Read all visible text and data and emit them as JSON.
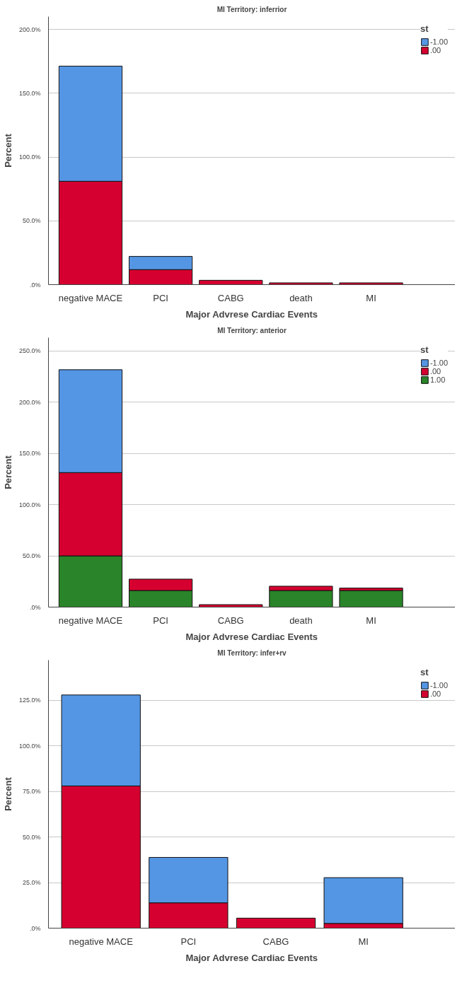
{
  "chart_data": [
    {
      "type": "bar",
      "stacked": true,
      "title": "MI Territory: inferrior",
      "xlabel": "Major Advrese Cardiac Events",
      "ylabel": "Percent",
      "legend_title": "st",
      "legend": "top right",
      "grid": "y",
      "categories": [
        "negative MACE",
        "PCI",
        "CABG",
        "death",
        "MI"
      ],
      "series": [
        {
          "name": ".00",
          "color": "#d5002f",
          "values": [
            81.0,
            11.8,
            3.4,
            1.4,
            1.4
          ]
        },
        {
          "name": "-1.00",
          "color": "#5596e4",
          "values": [
            90.2,
            10.3,
            0,
            0,
            0
          ]
        }
      ],
      "ylim": [
        0,
        210
      ],
      "yticks": [
        {
          "value": 0,
          "label": ".0%"
        },
        {
          "value": 50,
          "label": "50.0%"
        },
        {
          "value": 100,
          "label": "100.0%"
        },
        {
          "value": 150,
          "label": "150.0%"
        },
        {
          "value": 200,
          "label": "200.0%"
        }
      ]
    },
    {
      "type": "bar",
      "stacked": true,
      "title": "MI Territory: anterior",
      "xlabel": "Major Advrese Cardiac Events",
      "ylabel": "Percent",
      "legend_title": "st",
      "legend": "top right",
      "grid": "y",
      "categories": [
        "negative MACE",
        "PCI",
        "CABG",
        "death",
        "MI"
      ],
      "series": [
        {
          "name": "1.00",
          "color": "#2a8429",
          "values": [
            50.0,
            16.2,
            0,
            16.2,
            16.2
          ]
        },
        {
          "name": ".00",
          "color": "#d5002f",
          "values": [
            81.3,
            11.1,
            2.4,
            4.2,
            2.4
          ]
        },
        {
          "name": "-1.00",
          "color": "#5596e4",
          "values": [
            100.4,
            0,
            0,
            0,
            0
          ]
        }
      ],
      "ylim": [
        0,
        263
      ],
      "yticks": [
        {
          "value": 0,
          "label": ".0%"
        },
        {
          "value": 50,
          "label": "50.0%"
        },
        {
          "value": 100,
          "label": "100.0%"
        },
        {
          "value": 150,
          "label": "150.0%"
        },
        {
          "value": 200,
          "label": "200.0%"
        },
        {
          "value": 250,
          "label": "250.0%"
        }
      ]
    },
    {
      "type": "bar",
      "stacked": true,
      "title": "MI Territory: infer+rv",
      "xlabel": "Major Advrese Cardiac Events",
      "ylabel": "Percent",
      "legend_title": "st",
      "legend": "top right",
      "grid": "y",
      "categories": [
        "negative MACE",
        "PCI",
        "CABG",
        "MI"
      ],
      "series": [
        {
          "name": ".00",
          "color": "#d5002f",
          "values": [
            78.0,
            13.9,
            5.5,
            2.6
          ]
        },
        {
          "name": "-1.00",
          "color": "#5596e4",
          "values": [
            49.9,
            24.9,
            0,
            25.1
          ]
        }
      ],
      "ylim": [
        0,
        147
      ],
      "yticks": [
        {
          "value": 0,
          "label": ".0%"
        },
        {
          "value": 25,
          "label": "25.0%"
        },
        {
          "value": 50,
          "label": "50.0%"
        },
        {
          "value": 75,
          "label": "75.0%"
        },
        {
          "value": 100,
          "label": "100.0%"
        },
        {
          "value": 125,
          "label": "125.0%"
        }
      ]
    }
  ]
}
